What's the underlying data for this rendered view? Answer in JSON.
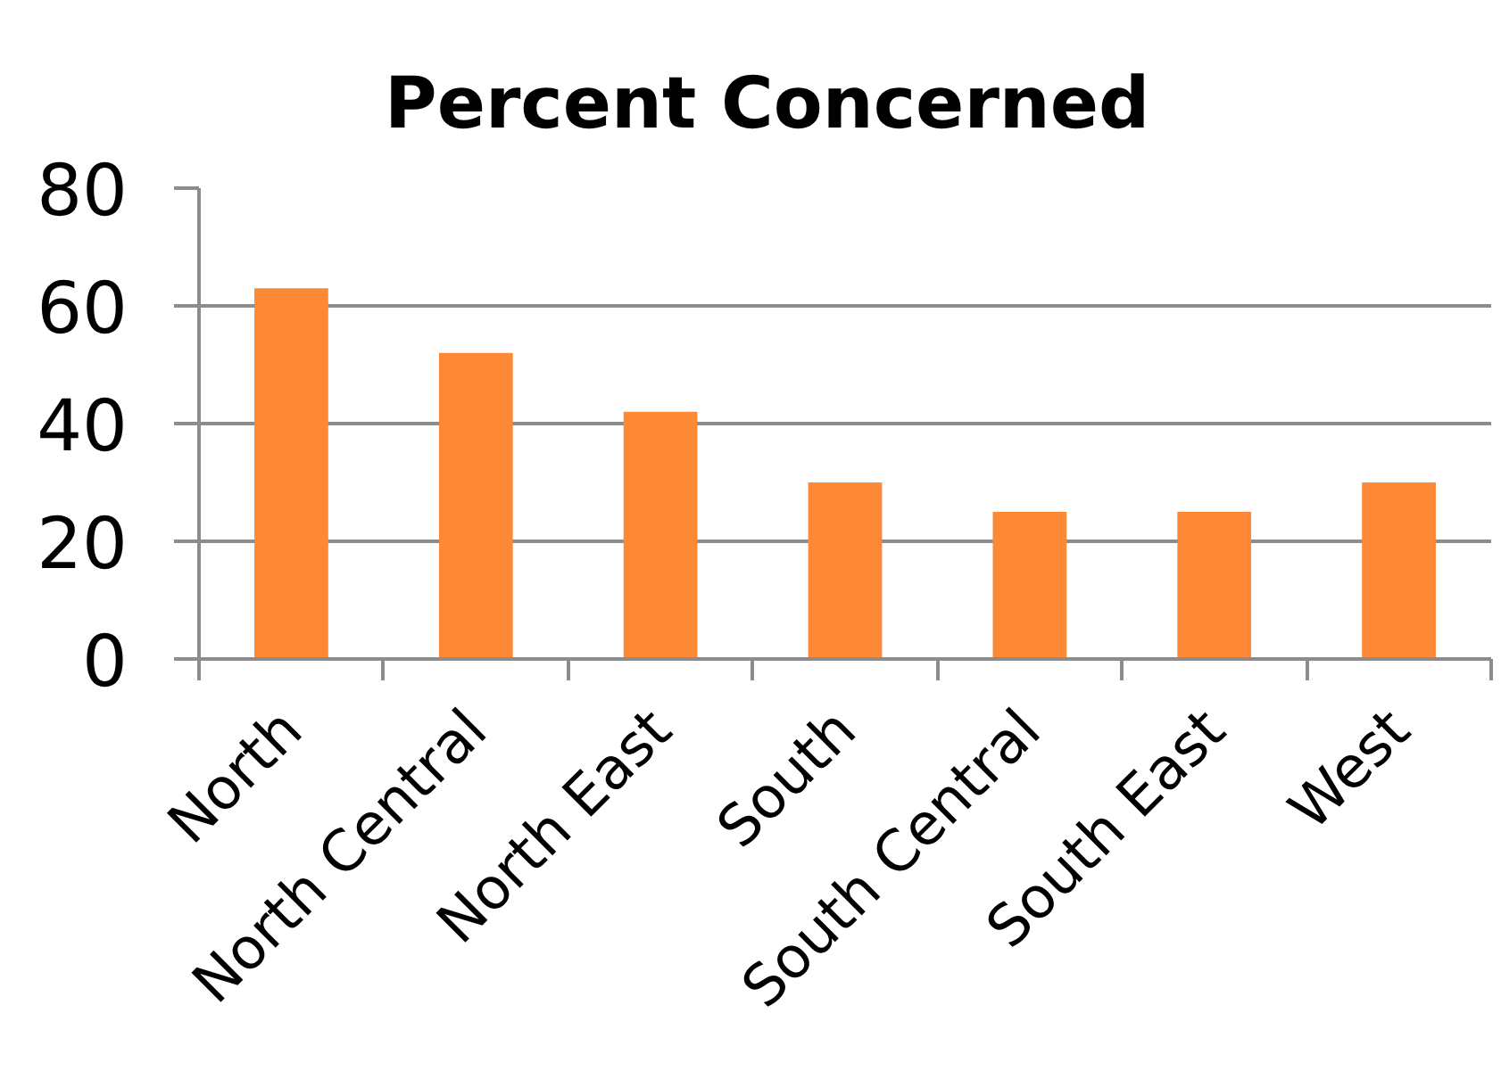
{
  "chart_data": {
    "type": "bar",
    "title": "Percent Concerned",
    "categories": [
      "North",
      "North Central",
      "North East",
      "South",
      "South Central",
      "South East",
      "West"
    ],
    "values": [
      63,
      52,
      42,
      30,
      25,
      25,
      30
    ],
    "color": "#fd8836",
    "ylim": [
      0,
      80
    ],
    "yticks": [
      0,
      20,
      40,
      60,
      80
    ],
    "grid": "y"
  }
}
